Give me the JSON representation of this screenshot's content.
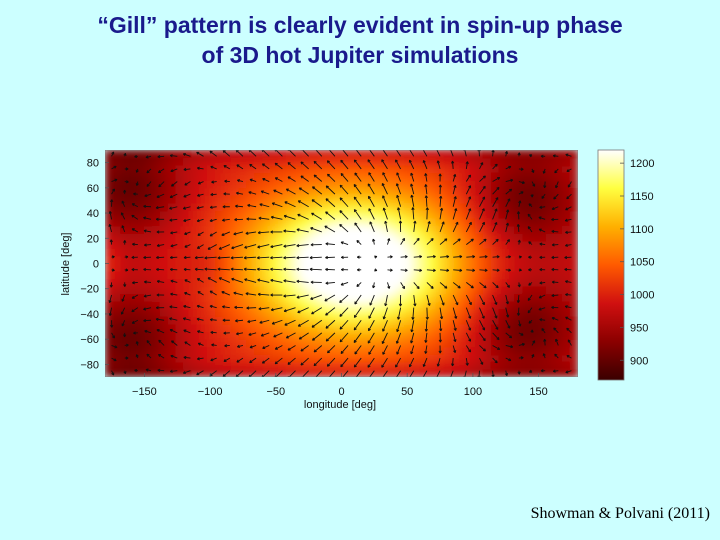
{
  "slide": {
    "title_line1": "“Gill” pattern is clearly evident in spin-up phase",
    "title_line2": "of 3D hot Jupiter simulations",
    "citation": "Showman & Polvani  (2011)"
  },
  "colors": {
    "background": "#ccffff",
    "title": "#1a1a8c",
    "colormap": [
      "#3a0000",
      "#8b0000",
      "#d01010",
      "#ff5a00",
      "#ffb000",
      "#ffff40",
      "#ffffff"
    ]
  },
  "chart_data": {
    "type": "heatmap",
    "title": "",
    "xlabel": "longitude [deg]",
    "ylabel": "latitude [deg]",
    "xlim": [
      -180,
      180
    ],
    "ylim": [
      -90,
      90
    ],
    "xticks": [
      -150,
      -100,
      -50,
      0,
      50,
      100,
      150
    ],
    "yticks": [
      80,
      60,
      40,
      20,
      0,
      -20,
      -40,
      -60,
      -80
    ],
    "x_tick_labels": [
      "−150",
      "−100",
      "−50",
      "0",
      "50",
      "100",
      "150"
    ],
    "y_tick_labels": [
      "80",
      "60",
      "40",
      "20",
      "0",
      "−20",
      "−40",
      "−60",
      "−80"
    ],
    "overlay": "wind vectors",
    "colorbar": {
      "label": "",
      "range": [
        870,
        1220
      ],
      "ticks": [
        1200,
        1150,
        1100,
        1050,
        1000,
        950,
        900
      ],
      "tick_labels": [
        "1200",
        "1150",
        "1100",
        "1050",
        "1000",
        "950",
        "900"
      ]
    },
    "features": {
      "hot_spot": {
        "lon": 10,
        "lat": 0,
        "value": 1215
      },
      "cold_equatorial_trough": {
        "lon": -100,
        "lat": 0,
        "value": 960
      },
      "cold_gyres": [
        {
          "lon": 140,
          "lat": 50,
          "value": 895
        },
        {
          "lon": 140,
          "lat": -50,
          "value": 895
        },
        {
          "lon": -160,
          "lat": 60,
          "value": 900
        },
        {
          "lon": -160,
          "lat": -60,
          "value": 900
        }
      ]
    }
  }
}
